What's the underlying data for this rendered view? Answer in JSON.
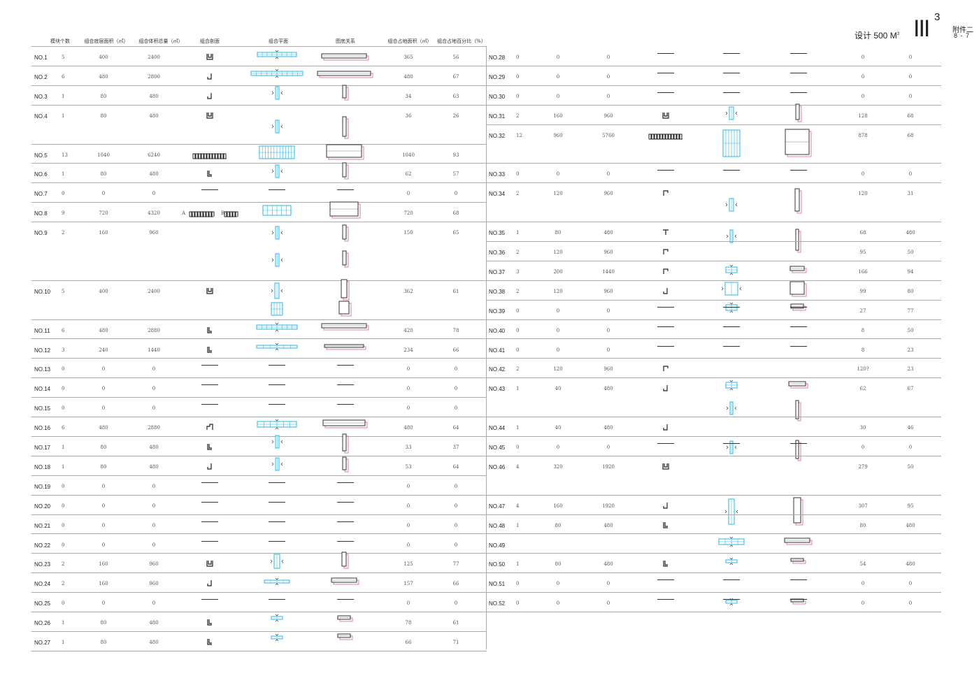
{
  "header": {
    "design_label": "设计  500 M",
    "design_exp": "3",
    "roman": "III",
    "roman_exp": "3",
    "attachment": "附件二",
    "page": "8 - 7"
  },
  "columns": {
    "count": "模块个数",
    "floor_area": "组合底层面积（㎡）",
    "volume": "组合体积总量（㎡）",
    "section": "组合剖面",
    "plan": "组合平面",
    "figure_ground": "图底关系",
    "site_area": "组合占地面积（㎡）",
    "site_percent": "组合占地百分比（%）"
  },
  "left_rows": [
    {
      "id": "NO.1",
      "count": "5",
      "floor": "400",
      "volume": "2400",
      "site": "365",
      "pct": "56"
    },
    {
      "id": "NO.2",
      "count": "6",
      "floor": "480",
      "volume": "2800",
      "site": "480",
      "pct": "67"
    },
    {
      "id": "NO.3",
      "count": "1",
      "floor": "80",
      "volume": "480",
      "site": "34",
      "pct": "63"
    },
    {
      "id": "NO.4",
      "count": "1",
      "floor": "80",
      "volume": "480",
      "site": "36",
      "pct": "26"
    },
    {
      "id": "NO.5",
      "count": "13",
      "floor": "1040",
      "volume": "6240",
      "site": "1040",
      "pct": "93"
    },
    {
      "id": "NO.6",
      "count": "1",
      "floor": "80",
      "volume": "480",
      "site": "62",
      "pct": "57"
    },
    {
      "id": "NO.7",
      "count": "0",
      "floor": "0",
      "volume": "0",
      "site": "0",
      "pct": "0"
    },
    {
      "id": "NO.8",
      "count": "9",
      "floor": "720",
      "volume": "4320",
      "site": "720",
      "pct": "68"
    },
    {
      "id": "NO.9",
      "count": "2",
      "floor": "160",
      "volume": "960",
      "site": "150",
      "pct": "65"
    },
    {
      "id": "NO.10",
      "count": "5",
      "floor": "400",
      "volume": "2400",
      "site": "362",
      "pct": "61"
    },
    {
      "id": "NO.11",
      "count": "6",
      "floor": "480",
      "volume": "2880",
      "site": "420",
      "pct": "78"
    },
    {
      "id": "NO.12",
      "count": "3",
      "floor": "240",
      "volume": "1440",
      "site": "234",
      "pct": "66"
    },
    {
      "id": "NO.13",
      "count": "0",
      "floor": "0",
      "volume": "0",
      "site": "0",
      "pct": "0"
    },
    {
      "id": "NO.14",
      "count": "0",
      "floor": "0",
      "volume": "0",
      "site": "0",
      "pct": "0"
    },
    {
      "id": "NO.15",
      "count": "0",
      "floor": "0",
      "volume": "0",
      "site": "0",
      "pct": "0"
    },
    {
      "id": "NO.16",
      "count": "6",
      "floor": "480",
      "volume": "2880",
      "site": "480",
      "pct": "64"
    },
    {
      "id": "NO.17",
      "count": "1",
      "floor": "80",
      "volume": "480",
      "site": "33",
      "pct": "37"
    },
    {
      "id": "NO.18",
      "count": "1",
      "floor": "80",
      "volume": "480",
      "site": "53",
      "pct": "64"
    },
    {
      "id": "NO.19",
      "count": "0",
      "floor": "0",
      "volume": "0",
      "site": "0",
      "pct": "0"
    },
    {
      "id": "NO.20",
      "count": "0",
      "floor": "0",
      "volume": "0",
      "site": "0",
      "pct": "0"
    },
    {
      "id": "NO.21",
      "count": "0",
      "floor": "0",
      "volume": "0",
      "site": "0",
      "pct": "0"
    },
    {
      "id": "NO.22",
      "count": "0",
      "floor": "0",
      "volume": "0",
      "site": "0",
      "pct": "0"
    },
    {
      "id": "NO.23",
      "count": "2",
      "floor": "160",
      "volume": "960",
      "site": "125",
      "pct": "77"
    },
    {
      "id": "NO.24",
      "count": "2",
      "floor": "160",
      "volume": "960",
      "site": "157",
      "pct": "66"
    },
    {
      "id": "NO.25",
      "count": "0",
      "floor": "0",
      "volume": "0",
      "site": "0",
      "pct": "0"
    },
    {
      "id": "NO.26",
      "count": "1",
      "floor": "80",
      "volume": "480",
      "site": "78",
      "pct": "61"
    },
    {
      "id": "NO.27",
      "count": "1",
      "floor": "80",
      "volume": "480",
      "site": "66",
      "pct": "71"
    }
  ],
  "right_rows": [
    {
      "id": "NO.28",
      "count": "0",
      "floor": "0",
      "volume": "0",
      "site": "0",
      "pct": "0"
    },
    {
      "id": "NO.29",
      "count": "0",
      "floor": "0",
      "volume": "0",
      "site": "0",
      "pct": "0"
    },
    {
      "id": "NO.30",
      "count": "0",
      "floor": "0",
      "volume": "0",
      "site": "0",
      "pct": "0"
    },
    {
      "id": "NO.31",
      "count": "2",
      "floor": "160",
      "volume": "960",
      "site": "128",
      "pct": "68"
    },
    {
      "id": "NO.32",
      "count": "12",
      "floor": "960",
      "volume": "5760",
      "site": "878",
      "pct": "68"
    },
    {
      "id": "NO.33",
      "count": "0",
      "floor": "0",
      "volume": "0",
      "site": "0",
      "pct": "0"
    },
    {
      "id": "NO.34",
      "count": "2",
      "floor": "120",
      "volume": "960",
      "site": "120",
      "pct": "31"
    },
    {
      "id": "NO.35",
      "count": "1",
      "floor": "80",
      "volume": "480",
      "site": "68",
      "pct": "480"
    },
    {
      "id": "NO.36",
      "count": "2",
      "floor": "120",
      "volume": "960",
      "site": "95",
      "pct": "50"
    },
    {
      "id": "NO.37",
      "count": "3",
      "floor": "200",
      "volume": "1440",
      "site": "166",
      "pct": "94"
    },
    {
      "id": "NO.38",
      "count": "2",
      "floor": "120",
      "volume": "960",
      "site": "99",
      "pct": "80"
    },
    {
      "id": "NO.39",
      "count": "0",
      "floor": "0",
      "volume": "0",
      "site": "27",
      "pct": "77"
    },
    {
      "id": "NO.40",
      "count": "0",
      "floor": "0",
      "volume": "0",
      "site": "8",
      "pct": "50"
    },
    {
      "id": "NO.41",
      "count": "0",
      "floor": "0",
      "volume": "0",
      "site": "8",
      "pct": "23"
    },
    {
      "id": "NO.42",
      "count": "2",
      "floor": "120",
      "volume": "960",
      "site": "120?",
      "pct": "23"
    },
    {
      "id": "NO.43",
      "count": "1",
      "floor": "40",
      "volume": "480",
      "site": "62",
      "pct": "67"
    },
    {
      "id": "NO.44",
      "count": "1",
      "floor": "40",
      "volume": "480",
      "site": "30",
      "pct": "46"
    },
    {
      "id": "NO.45",
      "count": "0",
      "floor": "0",
      "volume": "0",
      "site": "0",
      "pct": "0"
    },
    {
      "id": "NO.46",
      "count": "4",
      "floor": "320",
      "volume": "1920",
      "site": "279",
      "pct": "50"
    },
    {
      "id": "NO.47",
      "count": "4",
      "floor": "160",
      "volume": "1920",
      "site": "307",
      "pct": "95"
    },
    {
      "id": "NO.48",
      "count": "1",
      "floor": "80",
      "volume": "480",
      "site": "80",
      "pct": "480"
    },
    {
      "id": "NO.49",
      "count": "",
      "floor": "",
      "volume": "",
      "site": "",
      "pct": ""
    },
    {
      "id": "NO.50",
      "count": "1",
      "floor": "80",
      "volume": "480",
      "site": "54",
      "pct": "480"
    },
    {
      "id": "NO.51",
      "count": "0",
      "floor": "0",
      "volume": "0",
      "site": "0",
      "pct": "0"
    },
    {
      "id": "NO.52",
      "count": "0",
      "floor": "0",
      "volume": "0",
      "site": "0",
      "pct": "0"
    }
  ],
  "section_labels": {
    "a": "A",
    "b": "B"
  },
  "colors": {
    "plan_cyan": "#29b6e8",
    "figure_red": "#e0637a",
    "figure_dark": "#333333",
    "rule": "#aaaaaa"
  }
}
